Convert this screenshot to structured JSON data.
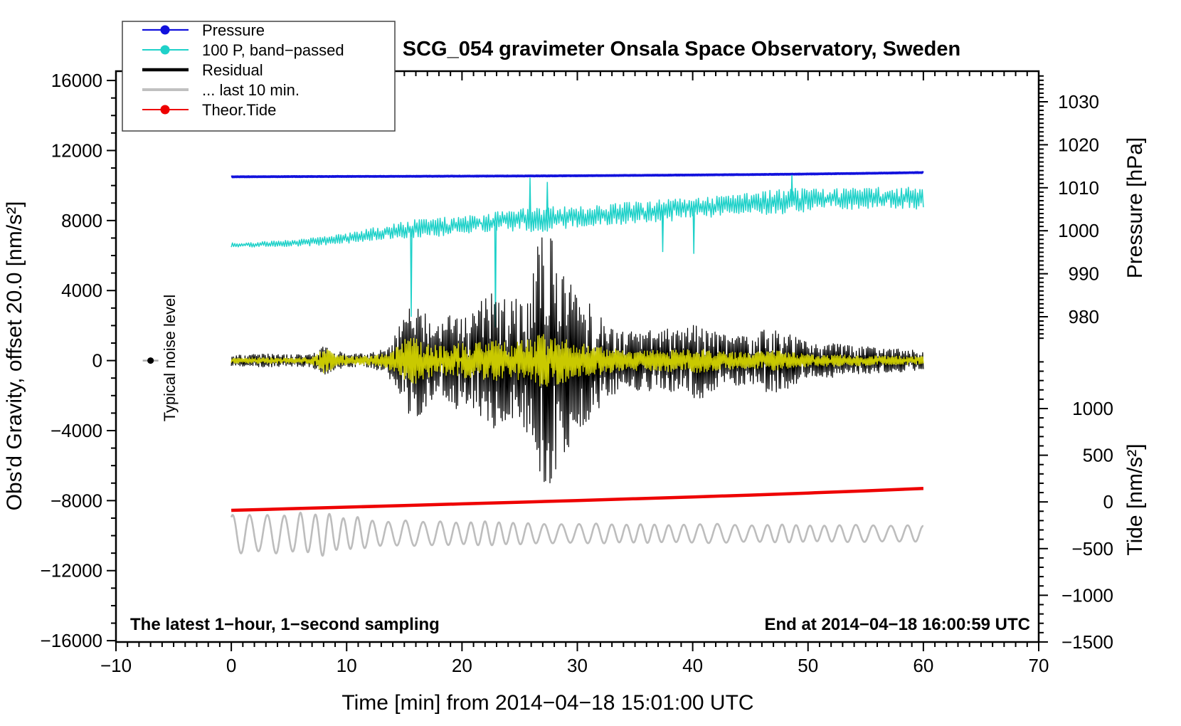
{
  "title": "SCG_054 gravimeter Onsala Space Observatory, Sweden",
  "annotations": {
    "sampling_note": "The latest 1−hour, 1−second sampling",
    "end_time_note": "End at 2014−04−18 16:00:59 UTC",
    "noise_label": "Typical noise level"
  },
  "legend": {
    "items": [
      {
        "label": "Pressure",
        "color": "#1212dd",
        "line_width": 2.2,
        "marker": true
      },
      {
        "label": "100 P, band−passed",
        "color": "#1fd1c9",
        "line_width": 2.0,
        "marker": true
      },
      {
        "label": "Residual",
        "color": "#000000",
        "line_width": 4.5,
        "marker": false
      },
      {
        "label": "... last 10 min.",
        "color": "#c0c0c0",
        "line_width": 4.0,
        "marker": false
      },
      {
        "label": "Theor.Tide",
        "color": "#ee0000",
        "line_width": 2.0,
        "marker": true
      }
    ]
  },
  "axes": {
    "x": {
      "label": "Time [min] from 2014−04−18 15:01:00 UTC",
      "range": [
        -10,
        70
      ],
      "minor_step": 1,
      "major_ticks": [
        -10,
        0,
        10,
        20,
        30,
        40,
        50,
        60,
        70
      ],
      "tick_labels": [
        "−10",
        "0",
        "10",
        "20",
        "30",
        "40",
        "50",
        "60",
        "70"
      ]
    },
    "gravity": {
      "label": "Obs'd Gravity, offset 20.0 [nm/s²]",
      "range": [
        -16000,
        16000
      ],
      "minor_step": 1000,
      "major_ticks": [
        16000,
        12000,
        8000,
        4000,
        0,
        -4000,
        -8000,
        -12000,
        -16000
      ],
      "tick_labels": [
        "16000",
        "12000",
        "8000",
        "4000",
        "0",
        "−4000",
        "−8000",
        "−12000",
        "−16000"
      ]
    },
    "pressure": {
      "label": "Pressure [hPa]",
      "range": [
        975,
        1036
      ],
      "minor_step": 1,
      "major_ticks": [
        1030,
        1020,
        1010,
        1000,
        990,
        980
      ],
      "tick_labels": [
        "1030",
        "1020",
        "1010",
        "1000",
        "990",
        "980"
      ]
    },
    "tide": {
      "label": "Tide [nm/s²]",
      "range": [
        -1500,
        1500
      ],
      "minor_step": 100,
      "major_ticks": [
        1000,
        500,
        0,
        -500,
        -1000,
        -1500
      ],
      "tick_labels": [
        "1000",
        "500",
        "0",
        "−500",
        "−1000",
        "−1500"
      ]
    }
  },
  "noise_marker": {
    "x_min": -7,
    "gravity_value": 0
  },
  "chart_data": {
    "type": "line",
    "x_unit": "minutes",
    "x_range": [
      -10,
      70
    ],
    "data_span_minutes": [
      0,
      60
    ],
    "series": [
      {
        "id": "pressure-curve",
        "name": "Pressure",
        "axis": "pressure",
        "color": "#1212dd",
        "width": 3.6,
        "render": "noise",
        "seed": 11,
        "x_step": 5,
        "sub": 70,
        "amp": 0.05,
        "center": [
          1012.55,
          1012.6,
          1012.63,
          1012.66,
          1012.7,
          1012.74,
          1012.8,
          1012.88,
          1012.97,
          1013.07,
          1013.2,
          1013.36,
          1013.55
        ]
      },
      {
        "id": "band-passed-pressure-curve",
        "name": "100 P, band−passed",
        "axis": "gravity",
        "color": "#1fd1c9",
        "width": 1.5,
        "render": "noise",
        "seed": 7,
        "x_step": 1,
        "sub": 10,
        "center": [
          6600,
          6610,
          6630,
          6650,
          6680,
          6700,
          6730,
          6780,
          6830,
          6900,
          6980,
          7100,
          7200,
          7300,
          7400,
          7500,
          7550,
          7600,
          7650,
          7700,
          7750,
          7800,
          7850,
          7900,
          7950,
          8000,
          8050,
          8100,
          8150,
          8200,
          8200,
          8250,
          8300,
          8350,
          8400,
          8450,
          8500,
          8550,
          8600,
          8650,
          8700,
          8750,
          8800,
          8850,
          8900,
          8950,
          9000,
          9050,
          9100,
          9150,
          9150,
          9200,
          9200,
          9250,
          9250,
          9300,
          9300,
          9300,
          9300,
          9280,
          9250
        ],
        "amp": [
          120,
          130,
          140,
          150,
          160,
          180,
          200,
          220,
          260,
          280,
          300,
          320,
          350,
          380,
          420,
          500,
          520,
          600,
          550,
          500,
          480,
          500,
          550,
          600,
          550,
          650,
          700,
          750,
          700,
          650,
          600,
          580,
          560,
          600,
          620,
          600,
          580,
          620,
          650,
          600,
          650,
          600,
          580,
          560,
          600,
          620,
          650,
          700,
          750,
          700,
          650,
          600,
          620,
          650,
          600,
          620,
          600,
          580,
          600,
          620,
          600
        ],
        "spikes": [
          {
            "x": 15.6,
            "v": 2500
          },
          {
            "x": 22.9,
            "v": 1900
          },
          {
            "x": 25.9,
            "v": 10450
          },
          {
            "x": 27.4,
            "v": 10200
          },
          {
            "x": 37.4,
            "v": 6200
          },
          {
            "x": 40.1,
            "v": 6100
          },
          {
            "x": 48.6,
            "v": 10600
          }
        ]
      },
      {
        "id": "residual-curve",
        "name": "Residual",
        "axis": "gravity",
        "color": "#000000",
        "width": 1.2,
        "render": "noise",
        "seed": 3,
        "x_step": 1,
        "sub": 16,
        "center": 0,
        "amp": [
          300,
          320,
          350,
          380,
          350,
          330,
          340,
          380,
          800,
          600,
          400,
          380,
          420,
          600,
          1200,
          2800,
          3400,
          2500,
          1900,
          2600,
          2900,
          2700,
          3700,
          3900,
          3300,
          3600,
          5000,
          7800,
          6800,
          5200,
          4200,
          3400,
          2600,
          2000,
          1600,
          1700,
          1800,
          1500,
          1900,
          1600,
          2200,
          2100,
          1600,
          1400,
          1400,
          1300,
          1700,
          1900,
          1700,
          1300,
          1000,
          900,
          1000,
          900,
          800,
          800,
          700,
          700,
          650,
          600,
          550
        ]
      },
      {
        "id": "residual-band-curve",
        "name": "Residual band−passed (unlabeled yellow)",
        "axis": "gravity",
        "color": "#c9c900",
        "width": 1.4,
        "render": "noise",
        "seed": 5,
        "x_step": 1,
        "sub": 16,
        "center": 0,
        "amp": [
          140,
          150,
          160,
          180,
          160,
          150,
          160,
          200,
          700,
          450,
          250,
          220,
          260,
          350,
          600,
          1200,
          1300,
          1100,
          800,
          900,
          1000,
          950,
          1100,
          1150,
          1000,
          1100,
          1300,
          1500,
          1400,
          1200,
          1000,
          900,
          800,
          700,
          600,
          600,
          620,
          560,
          640,
          560,
          700,
          650,
          560,
          500,
          480,
          450,
          520,
          560,
          520,
          420,
          350,
          320,
          340,
          320,
          300,
          290,
          270,
          260,
          250,
          240,
          230
        ]
      },
      {
        "id": "last-10-min-curve",
        "name": "... last 10 min.",
        "axis": "gravity",
        "color": "#bdbdbd",
        "width": 2.6,
        "render": "wave",
        "period": 1.35,
        "x_step": 1,
        "center": -9880,
        "amp": [
          1050,
          1150,
          1000,
          1050,
          1150,
          950,
          1200,
          1000,
          1300,
          950,
          850,
          950,
          750,
          700,
          650,
          750,
          700,
          650,
          700,
          650,
          600,
          650,
          700,
          650,
          600,
          620,
          580,
          540,
          560,
          520,
          540,
          560,
          580,
          520,
          500,
          520,
          540,
          500,
          480,
          500,
          520,
          540,
          560,
          520,
          480,
          460,
          480,
          500,
          520,
          480,
          460,
          440,
          460,
          480,
          500,
          480,
          460,
          440,
          460,
          480,
          430
        ]
      },
      {
        "id": "theor-tide-curve",
        "name": "Theor.Tide",
        "axis": "tide",
        "color": "#ee0000",
        "width": 4.5,
        "render": "line",
        "x_step": 5,
        "values": [
          -90,
          -73,
          -56,
          -39,
          -21,
          -3,
          15,
          34,
          53,
          73,
          95,
          119,
          145
        ]
      }
    ]
  }
}
